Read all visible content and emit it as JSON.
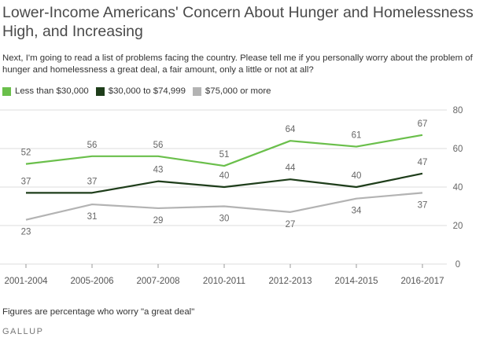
{
  "header": {
    "title": "Lower-Income Americans' Concern About Hunger and Homelessness High, and Increasing",
    "subtitle": "Next, I'm going to read a list of problems facing the country. Please tell me if you personally worry about the problem of hunger and homelessness a great deal, a fair amount, only a little or not at all?"
  },
  "footer": {
    "note": "Figures are percentage who worry \"a great deal\"",
    "source": "GALLUP"
  },
  "chart_data": {
    "type": "line",
    "title": "Lower-Income Americans' Concern About Hunger and Homelessness High, and Increasing",
    "xlabel": "",
    "ylabel": "",
    "x": [
      "2001-2004",
      "2005-2006",
      "2007-2008",
      "2010-2011",
      "2012-2013",
      "2014-2015",
      "2016-2017"
    ],
    "ylim": [
      0,
      80
    ],
    "yticks": [
      0,
      20,
      40,
      60,
      80
    ],
    "grid": true,
    "legend_position": "top-left",
    "series": [
      {
        "name": "Less than $30,000",
        "color": "#6abf4b",
        "values": [
          52,
          56,
          56,
          51,
          64,
          61,
          67
        ],
        "label_position": "above"
      },
      {
        "name": "$30,000 to $74,999",
        "color": "#1e3d1a",
        "values": [
          37,
          37,
          43,
          40,
          44,
          40,
          47
        ],
        "label_position": "above"
      },
      {
        "name": "$75,000 or more",
        "color": "#b3b3b3",
        "values": [
          23,
          31,
          29,
          30,
          27,
          34,
          37
        ],
        "label_position": "below"
      }
    ]
  }
}
